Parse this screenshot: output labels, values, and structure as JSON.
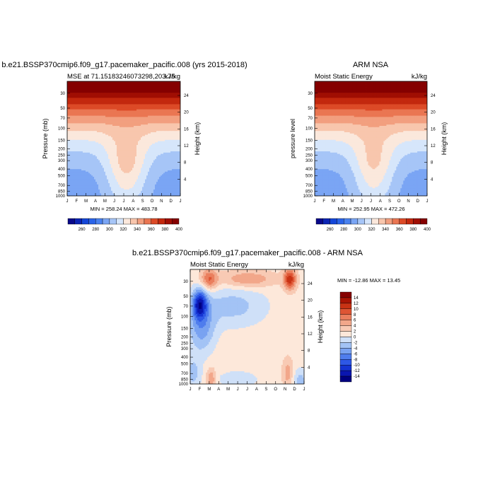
{
  "page": {
    "bottom_title": "b.e21.BSSP370cmip6.f09_g17.pacemaker_pacific.008 - ARM NSA"
  },
  "chart_data": [
    {
      "type": "heatmap",
      "id": "model",
      "title": "b.e21.BSSP370cmip6.f09_g17.pacemaker_pacific.008 (yrs 2015-2018)",
      "left_subtitle": "MSE at 71.15183246073298,203.75",
      "right_subtitle": "kJ/kg",
      "ylabel": "Pressure (mb)",
      "y2label": "Height (km)",
      "x": [
        "J",
        "F",
        "M",
        "A",
        "M",
        "J",
        "J",
        "A",
        "S",
        "O",
        "N",
        "D",
        "J"
      ],
      "pressure_ticks": [
        "30",
        "50",
        "70",
        "100",
        "150",
        "200",
        "250",
        "300",
        "400",
        "500",
        "700",
        "850",
        "1000"
      ],
      "height_ticks": [
        "24",
        "20",
        "16",
        "12",
        "8",
        "4"
      ],
      "levels": [
        260,
        270,
        280,
        290,
        300,
        310,
        320,
        330,
        340,
        350,
        360,
        370,
        380,
        390,
        400
      ],
      "colorbar_labels": [
        "260",
        "280",
        "300",
        "320",
        "340",
        "360",
        "380",
        "400"
      ],
      "minmax": "MIN = 258.24  MAX = 483.78"
    },
    {
      "type": "heatmap",
      "id": "obs",
      "title": "ARM NSA",
      "left_subtitle": "Moist Static Energy",
      "right_subtitle": "kJ/kg",
      "ylabel": "pressure level",
      "y2label": "Height (km)",
      "x": [
        "J",
        "F",
        "M",
        "A",
        "M",
        "J",
        "J",
        "A",
        "S",
        "O",
        "N",
        "D",
        "J"
      ],
      "pressure_ticks": [
        "30",
        "50",
        "70",
        "100",
        "150",
        "200",
        "250",
        "300",
        "400",
        "500",
        "700",
        "850",
        "1000"
      ],
      "height_ticks": [
        "24",
        "20",
        "16",
        "12",
        "8",
        "4"
      ],
      "levels": [
        260,
        270,
        280,
        290,
        300,
        310,
        320,
        330,
        340,
        350,
        360,
        370,
        380,
        390,
        400
      ],
      "colorbar_labels": [
        "260",
        "280",
        "300",
        "320",
        "340",
        "360",
        "380",
        "400"
      ],
      "minmax": "MIN = 252.95  MAX = 472.26"
    },
    {
      "type": "heatmap",
      "id": "diff",
      "title": "",
      "left_subtitle": "Moist Static Energy",
      "right_subtitle": "kJ/kg",
      "ylabel": "Pressure (mb)",
      "y2label": "Height (km)",
      "x": [
        "J",
        "F",
        "M",
        "A",
        "M",
        "J",
        "J",
        "A",
        "S",
        "O",
        "N",
        "D",
        "J"
      ],
      "pressure_ticks": [
        "30",
        "50",
        "70",
        "100",
        "150",
        "200",
        "250",
        "300",
        "400",
        "500",
        "700",
        "850",
        "1000"
      ],
      "height_ticks": [
        "24",
        "20",
        "16",
        "12",
        "8",
        "4"
      ],
      "levels": [
        -14,
        -12,
        -10,
        -8,
        -6,
        -4,
        -2,
        0,
        2,
        4,
        6,
        8,
        10,
        12,
        14
      ],
      "colorbar_labels": [
        "14",
        "12",
        "10",
        "8",
        "6",
        "4",
        "2",
        "0",
        "-2",
        "-4",
        "-6",
        "-8",
        "-10",
        "-12",
        "-14"
      ],
      "minmax": "MIN = -12.86  MAX =  13.45"
    }
  ],
  "colors": {
    "sequential": [
      "#08088a",
      "#0b24b4",
      "#1446d8",
      "#2a63e8",
      "#4a82ef",
      "#7aa5f4",
      "#a6c5f7",
      "#d6e6fb",
      "#fbe8dc",
      "#f8c6ad",
      "#f29f7f",
      "#ea7652",
      "#dc4a27",
      "#c3280e",
      "#a00e03",
      "#850000"
    ],
    "diverging": [
      "#000080",
      "#0a16b0",
      "#1534d2",
      "#2e58e6",
      "#4f7ded",
      "#79a2f1",
      "#a3c3f5",
      "#cfe0f8",
      "#fde8da",
      "#f8cab4",
      "#f2a78a",
      "#ea7f5e",
      "#de5534",
      "#c83214",
      "#a81404",
      "#860000"
    ]
  }
}
